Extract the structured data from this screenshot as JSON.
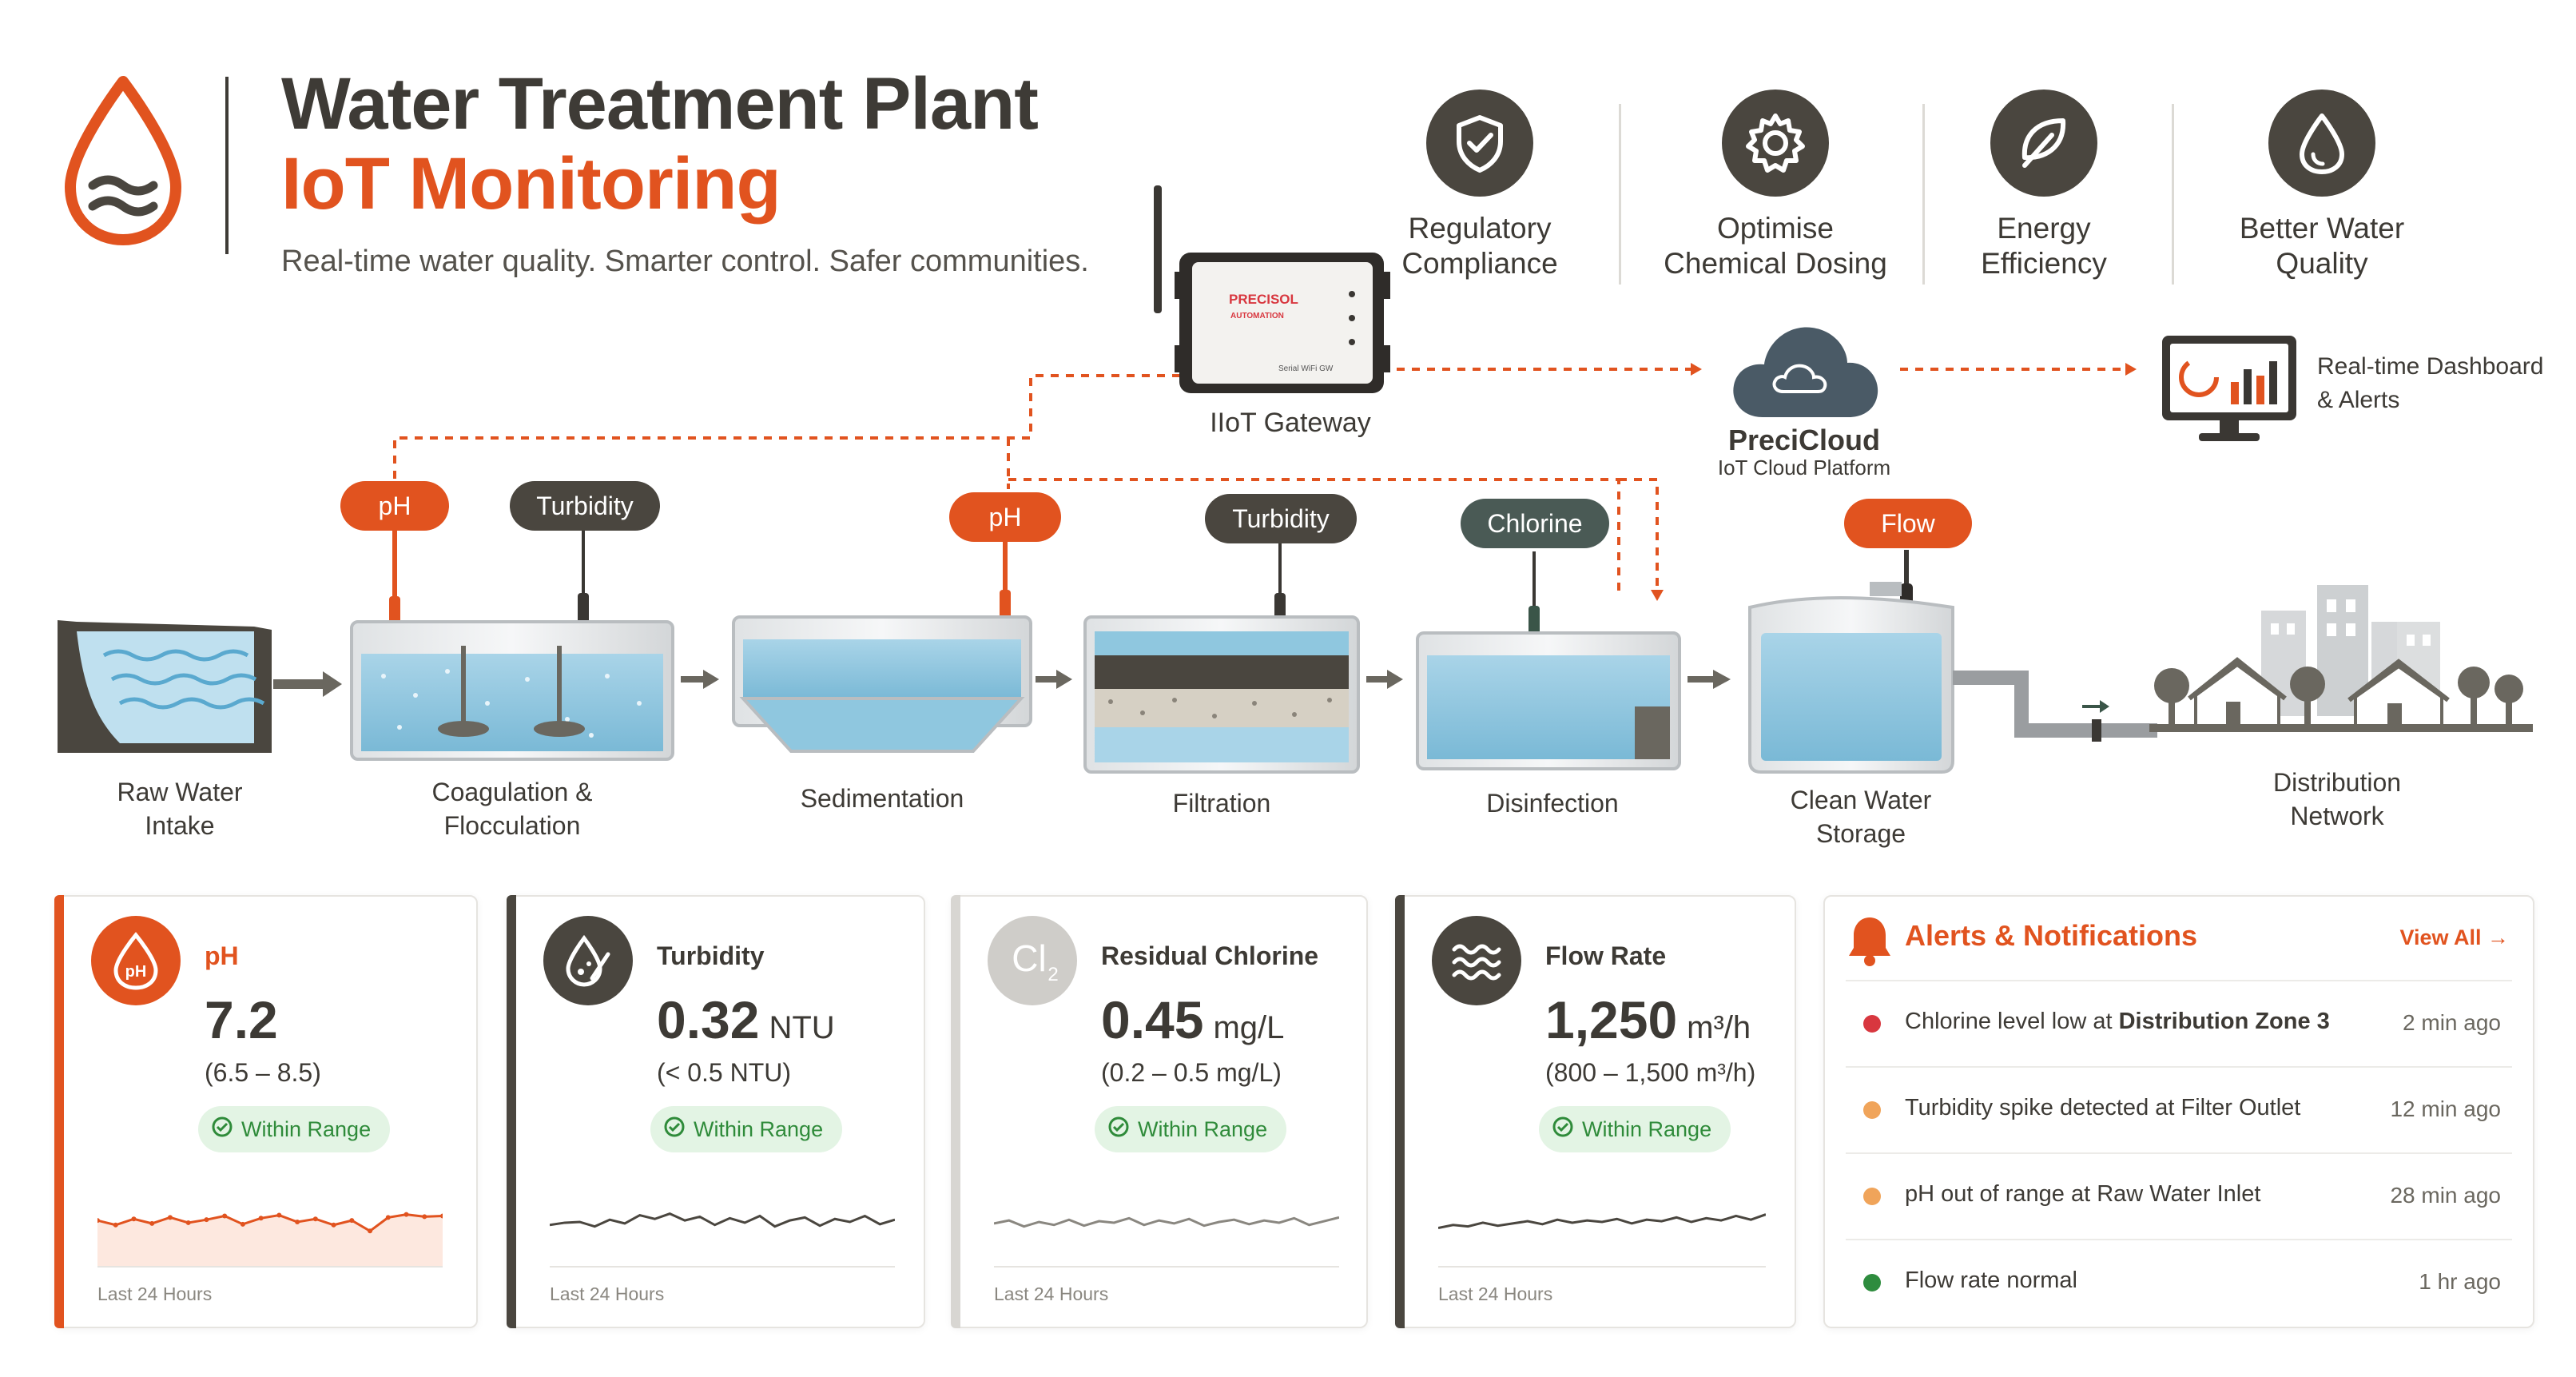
{
  "header": {
    "title_line1": "Water Treatment Plant",
    "title_line2": "IoT Monitoring",
    "tagline": "Real-time water quality. Smarter control. Safer communities."
  },
  "benefits": [
    {
      "label_line1": "Regulatory",
      "label_line2": "Compliance",
      "icon": "shield-check-icon"
    },
    {
      "label_line1": "Optimise",
      "label_line2": "Chemical Dosing",
      "icon": "gear-icon"
    },
    {
      "label_line1": "Energy",
      "label_line2": "Efficiency",
      "icon": "leaf-icon"
    },
    {
      "label_line1": "Better Water",
      "label_line2": "Quality",
      "icon": "water-drop-icon"
    }
  ],
  "gateway": {
    "label": "IIoT Gateway",
    "device_brand_line1": "PRECISOL",
    "device_brand_line2": "AUTOMATION",
    "device_port_label": "Serial WiFi GW"
  },
  "cloud": {
    "name": "PreciCloud",
    "subtitle": "IoT Cloud Platform"
  },
  "dashboard": {
    "label_line1": "Real-time Dashboard",
    "label_line2": "& Alerts"
  },
  "sensors": {
    "ph_1": "pH",
    "turbidity_1": "Turbidity",
    "ph_2": "pH",
    "turbidity_2": "Turbidity",
    "chlorine": "Chlorine",
    "flow": "Flow"
  },
  "stages": [
    {
      "line1": "Raw Water",
      "line2": "Intake"
    },
    {
      "line1": "Coagulation &",
      "line2": "Flocculation"
    },
    {
      "line1": "Sedimentation",
      "line2": ""
    },
    {
      "line1": "Filtration",
      "line2": ""
    },
    {
      "line1": "Disinfection",
      "line2": ""
    },
    {
      "line1": "Clean Water",
      "line2": "Storage"
    },
    {
      "line1": "Distribution",
      "line2": "Network"
    }
  ],
  "cards": [
    {
      "title": "pH",
      "value": "7.2",
      "unit": "",
      "range": "(6.5 – 8.5)",
      "status": "Within Range",
      "footer": "Last 24 Hours",
      "icon": "ph-drop-icon",
      "accent": "#e1531f",
      "trend": [
        5.2,
        4.6,
        5.4,
        4.8,
        5.6,
        4.9,
        5.3,
        5.8,
        4.7,
        5.5,
        5.9,
        5.0,
        5.4,
        4.6,
        5.2,
        3.8,
        5.6,
        6.0,
        5.7,
        5.8
      ]
    },
    {
      "title": "Turbidity",
      "value": "0.32",
      "unit": "NTU",
      "range": "(< 0.5 NTU)",
      "status": "Within Range",
      "footer": "Last 24 Hours",
      "icon": "drops-gauge-icon",
      "accent": "#4a463f",
      "trend": [
        4.6,
        4.9,
        5.0,
        4.4,
        5.3,
        4.8,
        5.9,
        5.4,
        6.1,
        5.2,
        5.7,
        4.6,
        5.5,
        4.9,
        5.8,
        4.4,
        5.2,
        5.6,
        4.5,
        5.4,
        5.0,
        5.8,
        4.7,
        5.3
      ]
    },
    {
      "title": "Residual Chlorine",
      "value": "0.45",
      "unit": "mg/L",
      "range": "(0.2 – 0.5 mg/L)",
      "status": "Within Range",
      "footer": "Last 24 Hours",
      "icon": "cl2-icon",
      "accent": "#d8d6d2",
      "trend": [
        4.8,
        5.2,
        4.4,
        5.0,
        4.6,
        5.3,
        4.5,
        5.1,
        4.9,
        5.5,
        4.6,
        5.2,
        4.8,
        5.4,
        4.5,
        5.0,
        5.3,
        4.7,
        5.2,
        4.9,
        5.5,
        4.6,
        5.1,
        5.6
      ]
    },
    {
      "title": "Flow Rate",
      "value": "1,250",
      "unit": "m³/h",
      "range": "(800 – 1,500 m³/h)",
      "status": "Within Range",
      "footer": "Last 24 Hours",
      "icon": "waves-icon",
      "accent": "#4a463f",
      "trend": [
        4.2,
        4.6,
        4.4,
        4.9,
        4.5,
        4.8,
        5.1,
        4.7,
        5.3,
        4.9,
        5.2,
        5.0,
        5.4,
        4.8,
        5.3,
        5.1,
        5.6,
        5.0,
        5.5,
        5.2,
        5.8,
        5.3,
        6.0
      ]
    }
  ],
  "alerts": {
    "title": "Alerts & Notifications",
    "view_all": "View All →",
    "items": [
      {
        "msg_prefix": "Chlorine level low at ",
        "msg_emph": "Distribution Zone 3",
        "time": "2 min ago",
        "color": "#d8373f"
      },
      {
        "msg_prefix": "Turbidity spike detected at Filter Outlet",
        "msg_emph": "",
        "time": "12 min ago",
        "color": "#f0a45a"
      },
      {
        "msg_prefix": "pH out of range at Raw Water Inlet",
        "msg_emph": "",
        "time": "28 min ago",
        "color": "#f0a45a"
      },
      {
        "msg_prefix": "Flow rate normal",
        "msg_emph": "",
        "time": "1 hr ago",
        "color": "#2e8c3e"
      }
    ]
  },
  "colors": {
    "accent": "#e1531f",
    "dark": "#4a463f",
    "water": "#8fc7df",
    "ok_green": "#2f8b3a"
  }
}
